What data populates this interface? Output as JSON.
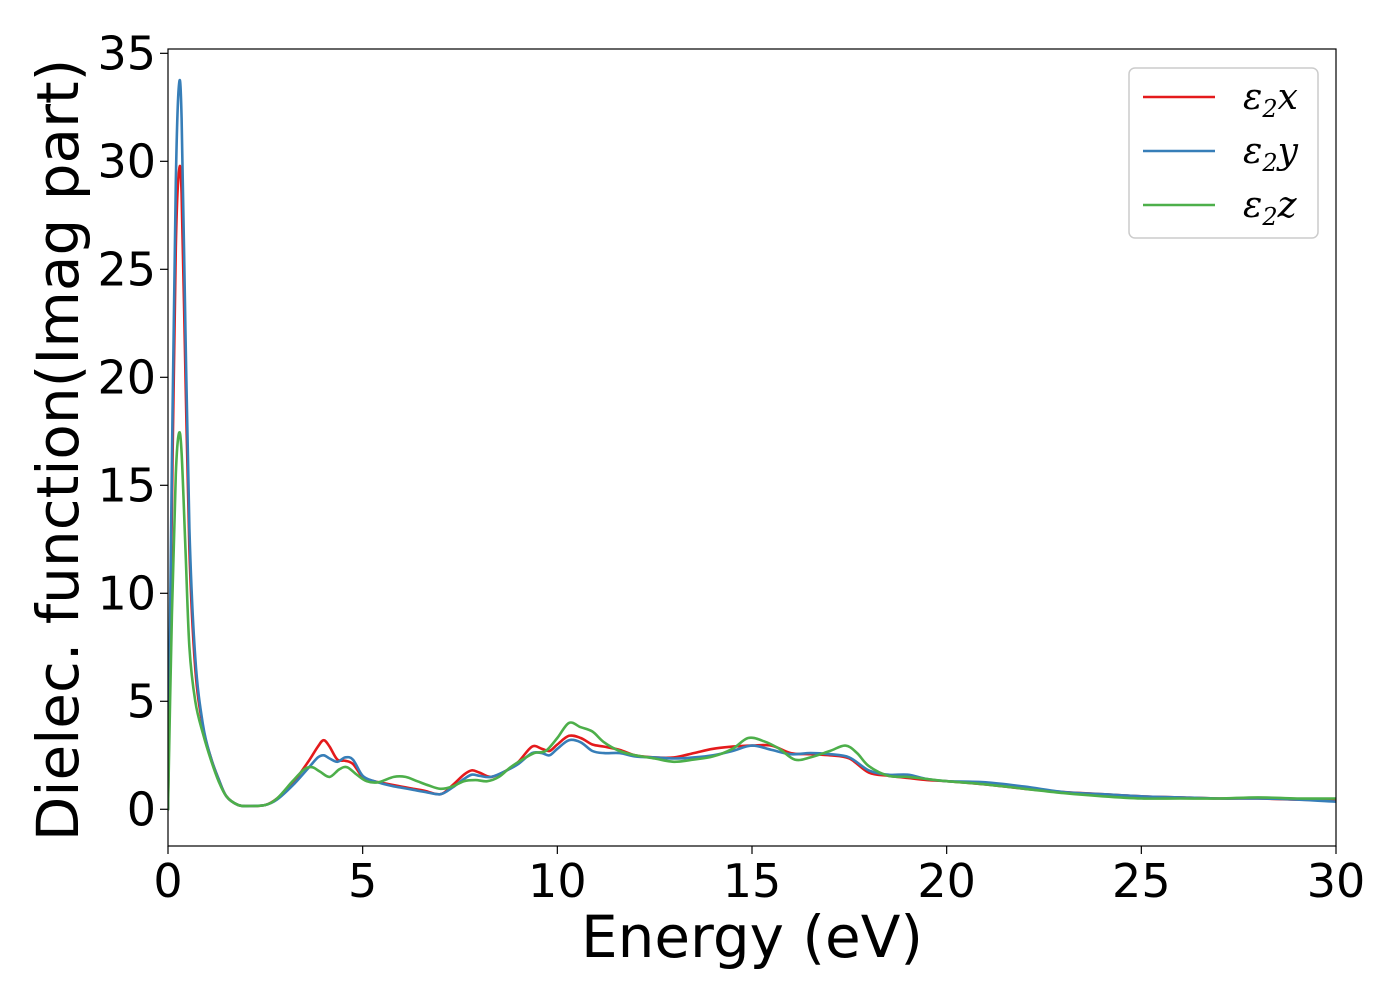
{
  "chart_data": {
    "type": "line",
    "xlabel": "Energy (eV)",
    "ylabel": "Dielec. function(Imag part)",
    "xlim": [
      0,
      30
    ],
    "ylim": [
      -1.7,
      35.2
    ],
    "xticks": [
      "0",
      "5",
      "10",
      "15",
      "20",
      "25",
      "30"
    ],
    "yticks": [
      "0",
      "5",
      "10",
      "15",
      "20",
      "25",
      "30",
      "35"
    ],
    "grid": false,
    "legend": "top-right",
    "series": [
      {
        "name": "ε₂x",
        "legend_base": "ε",
        "legend_sub": "2",
        "legend_var": "x",
        "color": "#e41a1c",
        "x": [
          0,
          0.1,
          0.2,
          0.28,
          0.35,
          0.45,
          0.55,
          0.7,
          0.9,
          1.1,
          1.3,
          1.5,
          1.8,
          2.1,
          2.5,
          2.8,
          3.2,
          3.6,
          3.85,
          4.0,
          4.15,
          4.35,
          4.55,
          4.75,
          5.0,
          5.3,
          5.7,
          6.0,
          6.3,
          6.6,
          7.0,
          7.3,
          7.6,
          7.8,
          8.0,
          8.3,
          8.7,
          9.0,
          9.35,
          9.6,
          9.8,
          10.0,
          10.3,
          10.6,
          10.9,
          11.2,
          11.6,
          12.0,
          12.5,
          13.0,
          13.5,
          14.0,
          14.5,
          15.0,
          15.5,
          16.0,
          16.5,
          17.0,
          17.5,
          18.0,
          18.5,
          19.0,
          19.5,
          20.0,
          21.0,
          22.0,
          23.0,
          24.0,
          25.0,
          26.0,
          27.0,
          28.0,
          29.0,
          30.0
        ],
        "y": [
          0,
          14,
          26,
          29.5,
          28.5,
          20,
          12,
          6.5,
          3.8,
          2.4,
          1.4,
          0.6,
          0.2,
          0.15,
          0.2,
          0.5,
          1.2,
          2.2,
          2.9,
          3.2,
          2.9,
          2.3,
          2.25,
          2.1,
          1.5,
          1.3,
          1.15,
          1.05,
          0.95,
          0.85,
          0.7,
          1.1,
          1.6,
          1.8,
          1.7,
          1.5,
          1.8,
          2.2,
          2.9,
          2.8,
          2.7,
          3.0,
          3.4,
          3.3,
          3.0,
          2.9,
          2.75,
          2.5,
          2.4,
          2.4,
          2.6,
          2.8,
          2.9,
          2.95,
          2.95,
          2.6,
          2.55,
          2.5,
          2.35,
          1.7,
          1.55,
          1.45,
          1.35,
          1.3,
          1.15,
          0.95,
          0.8,
          0.7,
          0.6,
          0.55,
          0.5,
          0.5,
          0.45,
          0.4
        ]
      },
      {
        "name": "ε₂y",
        "legend_base": "ε",
        "legend_sub": "2",
        "legend_var": "y",
        "color": "#377eb8",
        "x": [
          0,
          0.1,
          0.2,
          0.28,
          0.35,
          0.45,
          0.55,
          0.7,
          0.9,
          1.1,
          1.3,
          1.5,
          1.8,
          2.1,
          2.5,
          2.8,
          3.2,
          3.6,
          3.85,
          4.0,
          4.15,
          4.35,
          4.55,
          4.75,
          5.0,
          5.3,
          5.7,
          6.0,
          6.3,
          6.6,
          7.0,
          7.3,
          7.6,
          7.8,
          8.0,
          8.3,
          8.7,
          9.0,
          9.35,
          9.6,
          9.8,
          10.0,
          10.3,
          10.6,
          10.9,
          11.2,
          11.6,
          12.0,
          12.5,
          13.0,
          13.5,
          14.0,
          14.5,
          15.0,
          15.5,
          16.0,
          16.5,
          17.0,
          17.5,
          18.0,
          18.5,
          19.0,
          19.5,
          20.0,
          21.0,
          22.0,
          23.0,
          24.0,
          25.0,
          26.0,
          27.0,
          28.0,
          29.0,
          30.0
        ],
        "y": [
          0,
          16,
          29,
          33.5,
          32,
          22,
          13,
          7,
          3.9,
          2.4,
          1.4,
          0.6,
          0.2,
          0.15,
          0.2,
          0.45,
          1.1,
          1.9,
          2.4,
          2.5,
          2.35,
          2.2,
          2.4,
          2.3,
          1.55,
          1.3,
          1.1,
          1.0,
          0.9,
          0.8,
          0.7,
          1.0,
          1.4,
          1.6,
          1.55,
          1.5,
          1.8,
          2.1,
          2.6,
          2.6,
          2.5,
          2.8,
          3.2,
          3.1,
          2.7,
          2.6,
          2.6,
          2.45,
          2.4,
          2.35,
          2.4,
          2.5,
          2.7,
          2.95,
          2.75,
          2.55,
          2.6,
          2.55,
          2.4,
          1.8,
          1.6,
          1.6,
          1.4,
          1.3,
          1.25,
          1.05,
          0.8,
          0.7,
          0.6,
          0.55,
          0.5,
          0.5,
          0.45,
          0.35
        ]
      },
      {
        "name": "ε₂z",
        "legend_base": "ε",
        "legend_sub": "2",
        "legend_var": "z",
        "color": "#4daf4a",
        "x": [
          0,
          0.1,
          0.2,
          0.28,
          0.35,
          0.45,
          0.55,
          0.7,
          0.9,
          1.1,
          1.3,
          1.5,
          1.8,
          2.1,
          2.5,
          2.8,
          3.2,
          3.5,
          3.7,
          3.9,
          4.15,
          4.4,
          4.6,
          4.85,
          5.1,
          5.4,
          5.8,
          6.1,
          6.4,
          6.7,
          7.0,
          7.3,
          7.6,
          7.9,
          8.2,
          8.5,
          8.8,
          9.1,
          9.4,
          9.7,
          10.0,
          10.3,
          10.6,
          10.9,
          11.2,
          11.6,
          12.0,
          12.5,
          13.0,
          13.5,
          14.0,
          14.5,
          14.9,
          15.3,
          15.7,
          16.1,
          16.5,
          17.0,
          17.4,
          17.7,
          18.0,
          18.5,
          19.0,
          19.5,
          20.0,
          21.0,
          22.0,
          23.0,
          24.0,
          25.0,
          26.0,
          27.0,
          28.0,
          29.0,
          30.0
        ],
        "y": [
          0,
          9,
          15.5,
          17.4,
          16.5,
          12,
          7.5,
          5,
          3.5,
          2.3,
          1.3,
          0.6,
          0.2,
          0.15,
          0.2,
          0.5,
          1.3,
          1.85,
          1.95,
          1.75,
          1.5,
          1.85,
          1.95,
          1.6,
          1.3,
          1.25,
          1.5,
          1.5,
          1.3,
          1.1,
          0.95,
          1.05,
          1.3,
          1.35,
          1.3,
          1.5,
          1.95,
          2.3,
          2.6,
          2.7,
          3.3,
          4.0,
          3.8,
          3.6,
          3.1,
          2.7,
          2.5,
          2.35,
          2.2,
          2.3,
          2.45,
          2.8,
          3.3,
          3.15,
          2.8,
          2.3,
          2.4,
          2.7,
          2.95,
          2.6,
          2.0,
          1.55,
          1.5,
          1.4,
          1.3,
          1.15,
          0.95,
          0.75,
          0.6,
          0.5,
          0.5,
          0.5,
          0.55,
          0.5,
          0.5
        ]
      }
    ]
  }
}
